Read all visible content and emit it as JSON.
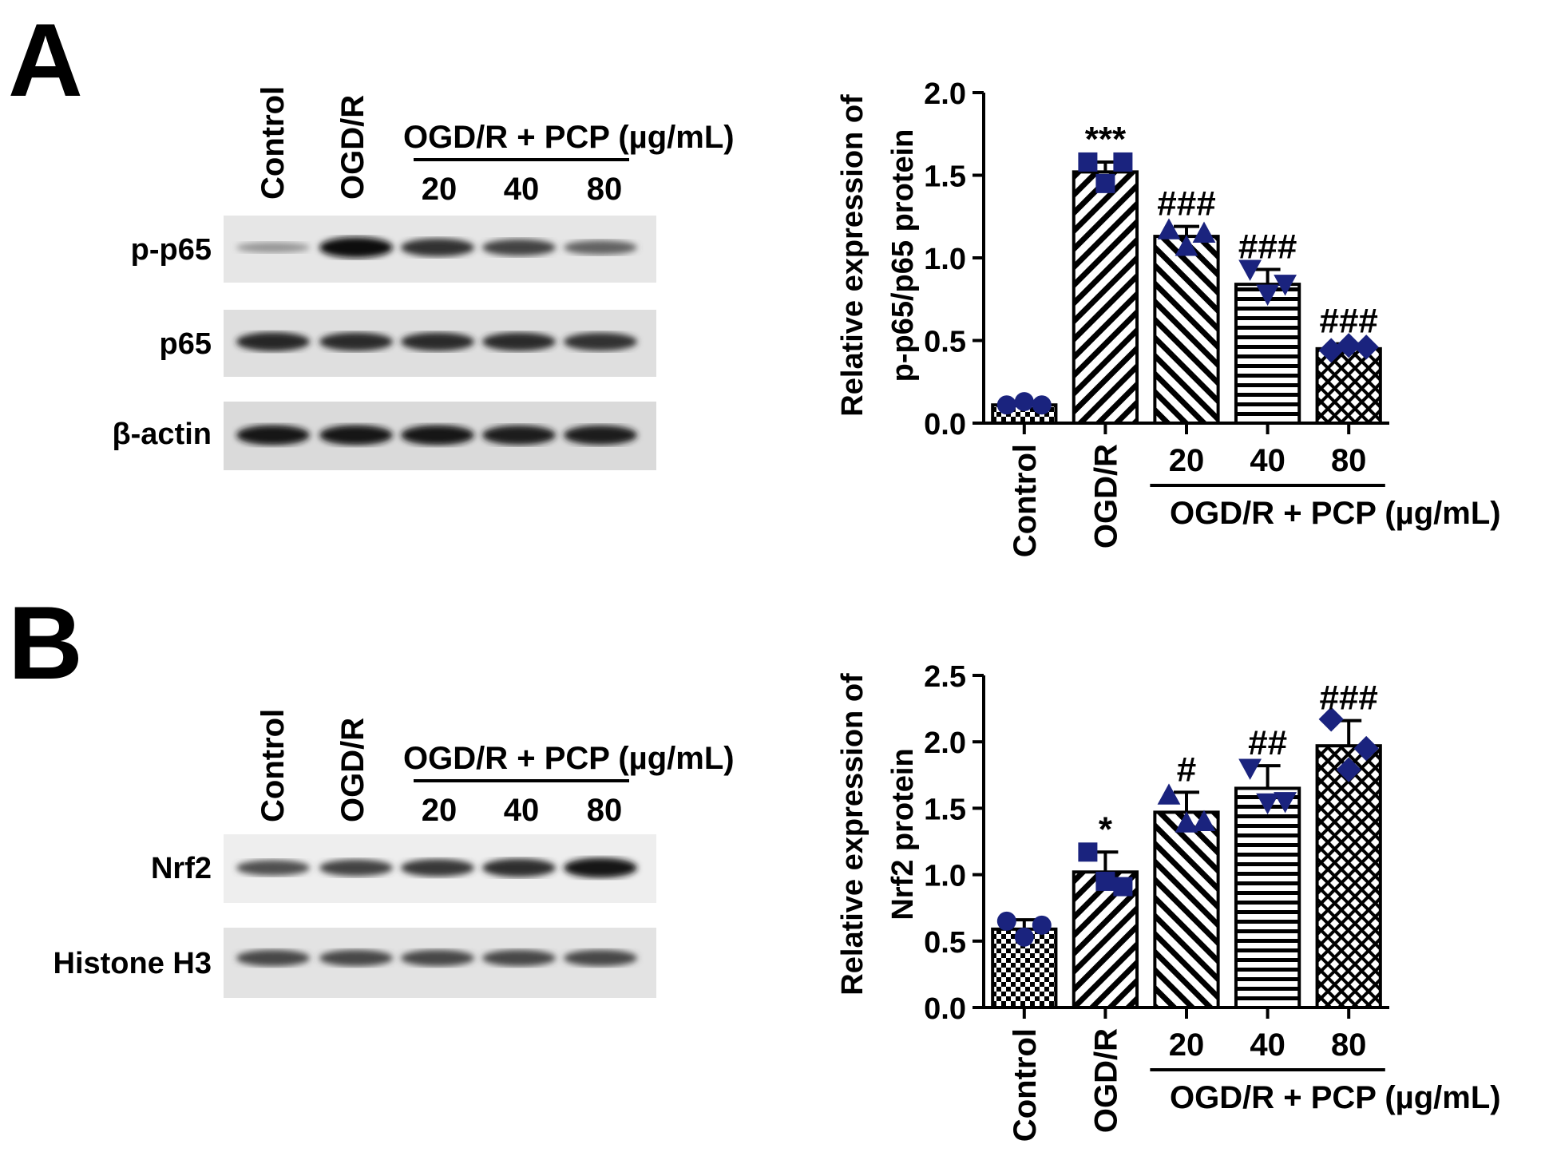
{
  "panels": {
    "A": {
      "letter": "A",
      "lanes": [
        "Control",
        "OGD/R",
        "20",
        "40",
        "80"
      ],
      "group_label": "OGD/R + PCP (µg/mL)",
      "blots": [
        {
          "label": "p-p65",
          "intensity": [
            0.28,
            1.0,
            0.82,
            0.72,
            0.55
          ]
        },
        {
          "label": "p65",
          "intensity": [
            0.88,
            0.85,
            0.85,
            0.85,
            0.82
          ]
        },
        {
          "label": "β-actin",
          "intensity": [
            0.95,
            0.95,
            0.95,
            0.92,
            0.92
          ]
        }
      ]
    },
    "B": {
      "letter": "B",
      "lanes": [
        "Control",
        "OGD/R",
        "20",
        "40",
        "80"
      ],
      "group_label": "OGD/R + PCP (µg/mL)",
      "blots": [
        {
          "label": "Nrf2",
          "intensity": [
            0.65,
            0.72,
            0.78,
            0.84,
            0.95
          ]
        },
        {
          "label": "Histone H3",
          "intensity": [
            0.7,
            0.7,
            0.7,
            0.7,
            0.7
          ]
        }
      ]
    }
  },
  "colors": {
    "bar_fill": "#ffffff",
    "bar_stroke": "#000000",
    "point": "#1a237e"
  },
  "chart_data": [
    {
      "type": "bar",
      "panel": "A",
      "ylabel": "Relative expression of p-p65/p65 protein",
      "ylabel_lines": [
        "Relative expression of",
        "p-p65/p65 protein"
      ],
      "categories": [
        "Control",
        "OGD/R",
        "20",
        "40",
        "80"
      ],
      "x_group_label": "OGD/R + PCP (µg/mL)",
      "values": [
        0.11,
        1.52,
        1.13,
        0.84,
        0.45
      ],
      "errors": [
        0.02,
        0.06,
        0.06,
        0.09,
        0.03
      ],
      "annotations": [
        "",
        "***",
        "###",
        "###",
        "###"
      ],
      "points": [
        [
          0.11,
          0.13,
          0.11
        ],
        [
          1.58,
          1.45,
          1.58
        ],
        [
          1.17,
          1.07,
          1.15
        ],
        [
          0.93,
          0.78,
          0.84
        ],
        [
          0.44,
          0.47,
          0.46
        ]
      ],
      "markers": [
        "circle",
        "square",
        "triangle",
        "triangle-down",
        "diamond"
      ],
      "patterns": [
        "check",
        "diag-right",
        "diag-left",
        "horizontal",
        "cross"
      ],
      "ylim": [
        0,
        2.0
      ],
      "yticks": [
        "0.0",
        "0.5",
        "1.0",
        "1.5",
        "2.0"
      ]
    },
    {
      "type": "bar",
      "panel": "B",
      "ylabel": "Relative expression of Nrf2 protein",
      "ylabel_lines": [
        "Relative expression of",
        "Nrf2 protein"
      ],
      "categories": [
        "Control",
        "OGD/R",
        "20",
        "40",
        "80"
      ],
      "x_group_label": "OGD/R + PCP (µg/mL)",
      "values": [
        0.59,
        1.02,
        1.47,
        1.65,
        1.97
      ],
      "errors": [
        0.07,
        0.15,
        0.15,
        0.17,
        0.19
      ],
      "annotations": [
        "",
        "*",
        "#",
        "##",
        "###"
      ],
      "points": [
        [
          0.65,
          0.53,
          0.62
        ],
        [
          1.17,
          0.95,
          0.91
        ],
        [
          1.6,
          1.39,
          1.4
        ],
        [
          1.8,
          1.54,
          1.55
        ],
        [
          2.17,
          1.79,
          1.95
        ]
      ],
      "markers": [
        "circle",
        "square",
        "triangle",
        "triangle-down",
        "diamond"
      ],
      "patterns": [
        "check",
        "diag-right",
        "diag-left",
        "horizontal",
        "cross"
      ],
      "ylim": [
        0,
        2.5
      ],
      "yticks": [
        "0.0",
        "0.5",
        "1.0",
        "1.5",
        "2.0",
        "2.5"
      ]
    }
  ]
}
